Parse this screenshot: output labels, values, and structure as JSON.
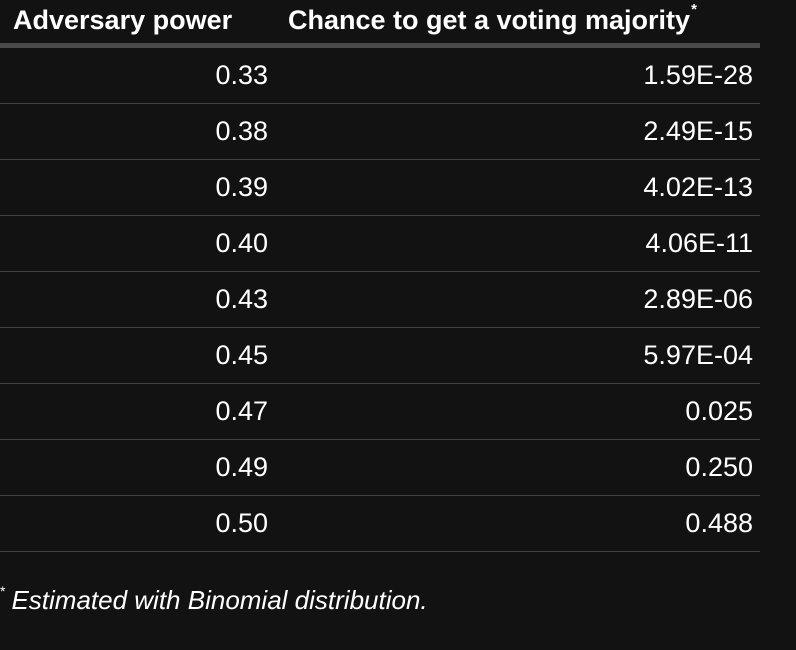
{
  "table": {
    "headers": {
      "adversary_power": "Adversary power",
      "chance": "Chance to get a voting majority",
      "chance_marker": "*"
    },
    "rows": [
      {
        "power": "0.33",
        "chance": "1.59E-28"
      },
      {
        "power": "0.38",
        "chance": "2.49E-15"
      },
      {
        "power": "0.39",
        "chance": "4.02E-13"
      },
      {
        "power": "0.40",
        "chance": "4.06E-11"
      },
      {
        "power": "0.43",
        "chance": "2.89E-06"
      },
      {
        "power": "0.45",
        "chance": "5.97E-04"
      },
      {
        "power": "0.47",
        "chance": "0.025"
      },
      {
        "power": "0.49",
        "chance": "0.250"
      },
      {
        "power": "0.50",
        "chance": "0.488"
      }
    ]
  },
  "footnote": {
    "marker": "*",
    "text": "Estimated with Binomial distribution."
  },
  "colors": {
    "background": "#121212",
    "text": "#ffffff",
    "header_rule": "#4a4a4a",
    "row_rule": "#444444"
  }
}
